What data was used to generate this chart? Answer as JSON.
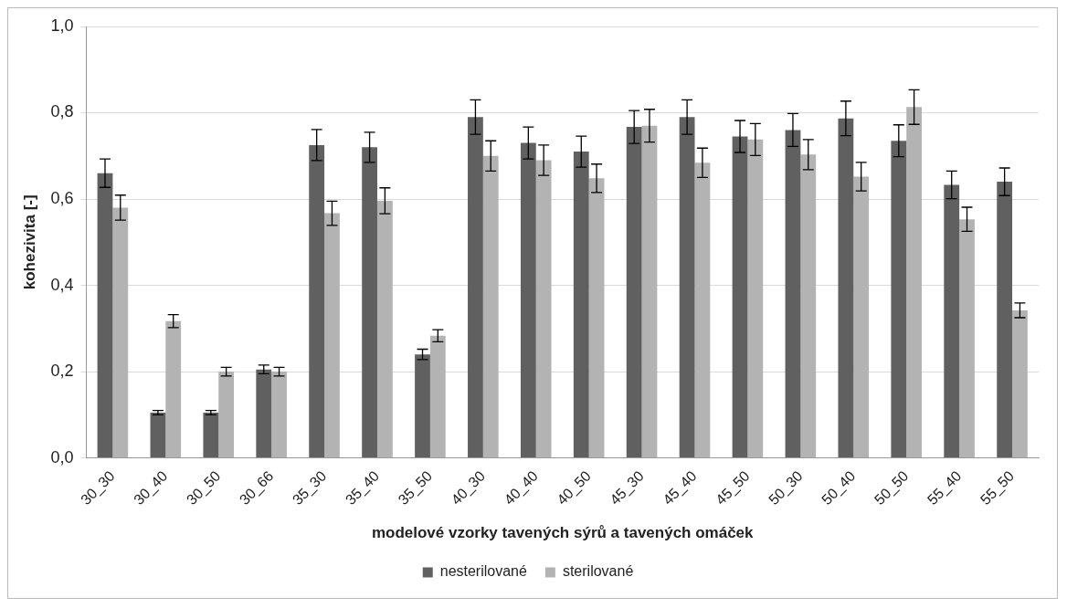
{
  "chart_data": {
    "type": "bar",
    "xlabel": "modelové vzorky tavených sýrů a tavených omáček",
    "ylabel": "kohezivita [-]",
    "categories": [
      "30_30",
      "30_40",
      "30_50",
      "30_66",
      "35_30",
      "35_40",
      "35_50",
      "40_30",
      "40_40",
      "40_50",
      "45_30",
      "45_40",
      "45_50",
      "50_30",
      "50_40",
      "50_50",
      "55_40",
      "55_50"
    ],
    "series": [
      {
        "name": "nesterilované",
        "color": "#606060",
        "values": [
          0.66,
          0.105,
          0.105,
          0.205,
          0.725,
          0.72,
          0.24,
          0.79,
          0.73,
          0.71,
          0.767,
          0.79,
          0.745,
          0.76,
          0.787,
          0.735,
          0.633,
          0.64
        ],
        "errors": [
          0.033,
          0.005,
          0.005,
          0.01,
          0.036,
          0.035,
          0.012,
          0.04,
          0.037,
          0.036,
          0.038,
          0.04,
          0.037,
          0.038,
          0.04,
          0.037,
          0.032,
          0.032
        ]
      },
      {
        "name": "sterilované",
        "color": "#b3b3b3",
        "values": [
          0.58,
          0.317,
          0.2,
          0.2,
          0.567,
          0.596,
          0.283,
          0.7,
          0.69,
          0.648,
          0.77,
          0.684,
          0.738,
          0.703,
          0.652,
          0.813,
          0.553,
          0.342
        ],
        "errors": [
          0.029,
          0.015,
          0.01,
          0.01,
          0.028,
          0.03,
          0.014,
          0.035,
          0.035,
          0.033,
          0.038,
          0.034,
          0.037,
          0.035,
          0.033,
          0.04,
          0.028,
          0.017
        ]
      }
    ],
    "ylim": [
      0,
      1
    ],
    "yticks": [
      {
        "value": 0,
        "label": "0,0"
      },
      {
        "value": 0.2,
        "label": "0,2"
      },
      {
        "value": 0.4,
        "label": "0,4"
      },
      {
        "value": 0.6,
        "label": "0,6"
      },
      {
        "value": 0.8,
        "label": "0,8"
      },
      {
        "value": 1,
        "label": "1,0"
      }
    ],
    "grid": "y",
    "legend": "bottom"
  }
}
